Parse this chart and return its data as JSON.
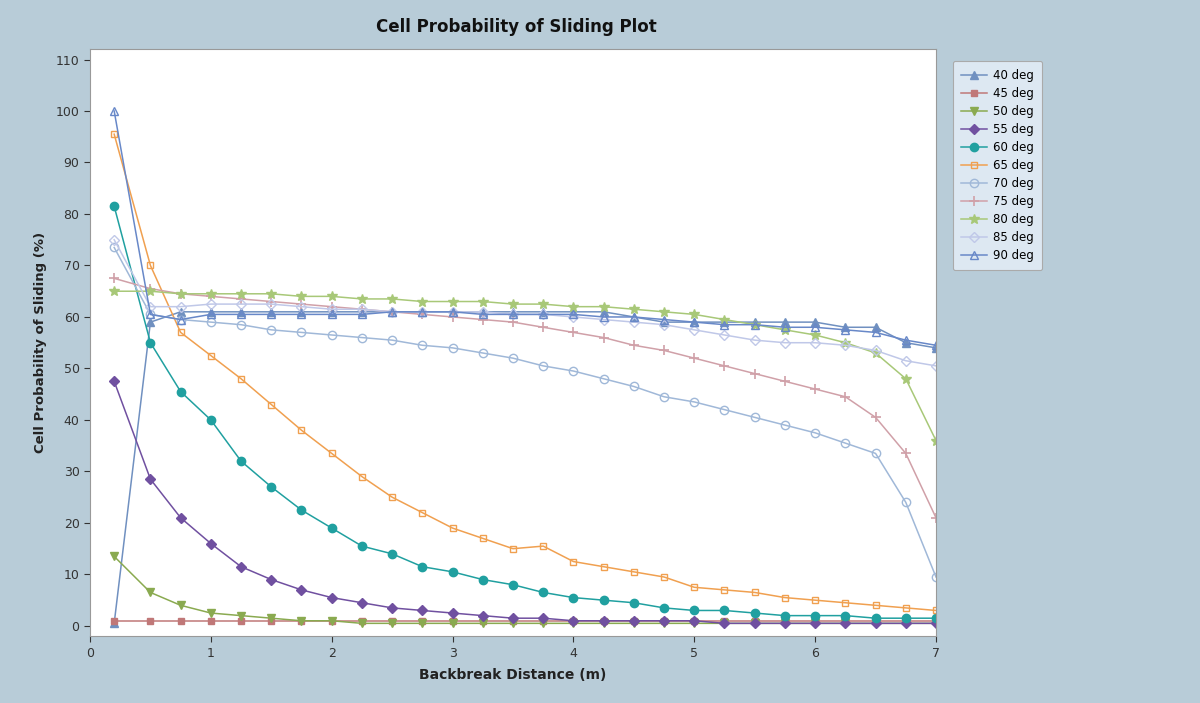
{
  "title": "Cell Probability of Sliding Plot",
  "xlabel": "Backbreak Distance (m)",
  "ylabel": "Cell Probability of Sliding (%)",
  "xlim": [
    0,
    7.0
  ],
  "ylim": [
    -2,
    112
  ],
  "outer_bg_color": "#b8ccd8",
  "plot_bg_color": "#ffffff",
  "yticks": [
    0,
    10,
    20,
    30,
    40,
    50,
    60,
    70,
    80,
    90,
    100,
    110
  ],
  "xticks": [
    0,
    1,
    2,
    3,
    4,
    5,
    6,
    7
  ],
  "series": [
    {
      "label": "40 deg",
      "color": "#7090c0",
      "marker": "^",
      "filled": true,
      "x": [
        0.2,
        0.5,
        0.75,
        1.0,
        1.25,
        1.5,
        1.75,
        2.0,
        2.25,
        2.5,
        2.75,
        3.0,
        3.25,
        3.5,
        3.75,
        4.0,
        4.25,
        4.5,
        4.75,
        5.0,
        5.25,
        5.5,
        5.75,
        6.0,
        6.25,
        6.5,
        6.75,
        7.0
      ],
      "y": [
        0.5,
        59,
        61,
        61,
        61,
        61,
        61,
        61,
        61,
        61,
        61,
        61,
        61,
        61,
        61,
        61,
        61,
        60,
        59,
        59,
        59,
        59,
        59,
        59,
        58,
        58,
        55,
        54
      ]
    },
    {
      "label": "45 deg",
      "color": "#c07878",
      "marker": "s",
      "filled": true,
      "x": [
        0.2,
        0.5,
        0.75,
        1.0,
        1.25,
        1.5,
        1.75,
        2.0,
        2.25,
        2.5,
        2.75,
        3.0,
        3.25,
        3.5,
        3.75,
        4.0,
        4.25,
        4.5,
        4.75,
        5.0,
        5.25,
        5.5,
        5.75,
        6.0,
        6.25,
        6.5,
        6.75,
        7.0
      ],
      "y": [
        1.0,
        1.0,
        1.0,
        1.0,
        1.0,
        1.0,
        1.0,
        1.0,
        1.0,
        1.0,
        1.0,
        1.0,
        1.0,
        1.0,
        1.0,
        1.0,
        1.0,
        1.0,
        1.0,
        1.0,
        1.0,
        1.0,
        1.0,
        1.0,
        1.0,
        1.0,
        1.0,
        1.0
      ]
    },
    {
      "label": "50 deg",
      "color": "#8aaa50",
      "marker": "v",
      "filled": true,
      "x": [
        0.2,
        0.5,
        0.75,
        1.0,
        1.25,
        1.5,
        1.75,
        2.0,
        2.25,
        2.5,
        2.75,
        3.0,
        3.25,
        3.5,
        3.75,
        4.0,
        4.25,
        4.5,
        4.75,
        5.0,
        5.25,
        5.5,
        5.75,
        6.0,
        6.25,
        6.5,
        6.75,
        7.0
      ],
      "y": [
        13.5,
        6.5,
        4.0,
        2.5,
        2.0,
        1.5,
        1.0,
        1.0,
        0.5,
        0.5,
        0.5,
        0.5,
        0.5,
        0.5,
        0.5,
        0.5,
        0.5,
        0.5,
        0.5,
        0.5,
        0.5,
        0.5,
        0.5,
        0.5,
        0.5,
        0.5,
        0.5,
        0.5
      ]
    },
    {
      "label": "55 deg",
      "color": "#7050a0",
      "marker": "D",
      "filled": true,
      "x": [
        0.2,
        0.5,
        0.75,
        1.0,
        1.25,
        1.5,
        1.75,
        2.0,
        2.25,
        2.5,
        2.75,
        3.0,
        3.25,
        3.5,
        3.75,
        4.0,
        4.25,
        4.5,
        4.75,
        5.0,
        5.25,
        5.5,
        5.75,
        6.0,
        6.25,
        6.5,
        6.75,
        7.0
      ],
      "y": [
        47.5,
        28.5,
        21.0,
        16.0,
        11.5,
        9.0,
        7.0,
        5.5,
        4.5,
        3.5,
        3.0,
        2.5,
        2.0,
        1.5,
        1.5,
        1.0,
        1.0,
        1.0,
        1.0,
        1.0,
        0.5,
        0.5,
        0.5,
        0.5,
        0.5,
        0.5,
        0.5,
        0.5
      ]
    },
    {
      "label": "60 deg",
      "color": "#20a0a0",
      "marker": "o",
      "filled": true,
      "x": [
        0.2,
        0.5,
        0.75,
        1.0,
        1.25,
        1.5,
        1.75,
        2.0,
        2.25,
        2.5,
        2.75,
        3.0,
        3.25,
        3.5,
        3.75,
        4.0,
        4.25,
        4.5,
        4.75,
        5.0,
        5.25,
        5.5,
        5.75,
        6.0,
        6.25,
        6.5,
        6.75,
        7.0
      ],
      "y": [
        81.5,
        55.0,
        45.5,
        40.0,
        32.0,
        27.0,
        22.5,
        19.0,
        15.5,
        14.0,
        11.5,
        10.5,
        9.0,
        8.0,
        6.5,
        5.5,
        5.0,
        4.5,
        3.5,
        3.0,
        3.0,
        2.5,
        2.0,
        2.0,
        2.0,
        1.5,
        1.5,
        1.5
      ]
    },
    {
      "label": "65 deg",
      "color": "#f0a050",
      "marker": "s",
      "filled": false,
      "x": [
        0.2,
        0.5,
        0.75,
        1.0,
        1.25,
        1.5,
        1.75,
        2.0,
        2.25,
        2.5,
        2.75,
        3.0,
        3.25,
        3.5,
        3.75,
        4.0,
        4.25,
        4.5,
        4.75,
        5.0,
        5.25,
        5.5,
        5.75,
        6.0,
        6.25,
        6.5,
        6.75,
        7.0
      ],
      "y": [
        95.5,
        70.0,
        57.0,
        52.5,
        48.0,
        43.0,
        38.0,
        33.5,
        29.0,
        25.0,
        22.0,
        19.0,
        17.0,
        15.0,
        15.5,
        12.5,
        11.5,
        10.5,
        9.5,
        7.5,
        7.0,
        6.5,
        5.5,
        5.0,
        4.5,
        4.0,
        3.5,
        3.0
      ]
    },
    {
      "label": "70 deg",
      "color": "#a0b8d8",
      "marker": "o",
      "filled": false,
      "x": [
        0.2,
        0.5,
        0.75,
        1.0,
        1.25,
        1.5,
        1.75,
        2.0,
        2.25,
        2.5,
        2.75,
        3.0,
        3.25,
        3.5,
        3.75,
        4.0,
        4.25,
        4.5,
        4.75,
        5.0,
        5.25,
        5.5,
        5.75,
        6.0,
        6.25,
        6.5,
        6.75,
        7.0
      ],
      "y": [
        73.5,
        60.5,
        59.5,
        59.0,
        58.5,
        57.5,
        57.0,
        56.5,
        56.0,
        55.5,
        54.5,
        54.0,
        53.0,
        52.0,
        50.5,
        49.5,
        48.0,
        46.5,
        44.5,
        43.5,
        42.0,
        40.5,
        39.0,
        37.5,
        35.5,
        33.5,
        24.0,
        9.5
      ]
    },
    {
      "label": "75 deg",
      "color": "#d0a0a8",
      "marker": "+",
      "filled": true,
      "x": [
        0.2,
        0.5,
        0.75,
        1.0,
        1.25,
        1.5,
        1.75,
        2.0,
        2.25,
        2.5,
        2.75,
        3.0,
        3.25,
        3.5,
        3.75,
        4.0,
        4.25,
        4.5,
        4.75,
        5.0,
        5.25,
        5.5,
        5.75,
        6.0,
        6.25,
        6.5,
        6.75,
        7.0
      ],
      "y": [
        67.5,
        65.5,
        64.5,
        64.0,
        63.5,
        63.0,
        62.5,
        62.0,
        61.5,
        61.0,
        60.5,
        60.0,
        59.5,
        59.0,
        58.0,
        57.0,
        56.0,
        54.5,
        53.5,
        52.0,
        50.5,
        49.0,
        47.5,
        46.0,
        44.5,
        40.5,
        33.5,
        21.0
      ]
    },
    {
      "label": "80 deg",
      "color": "#a8c878",
      "marker": "*",
      "filled": true,
      "x": [
        0.2,
        0.5,
        0.75,
        1.0,
        1.25,
        1.5,
        1.75,
        2.0,
        2.25,
        2.5,
        2.75,
        3.0,
        3.25,
        3.5,
        3.75,
        4.0,
        4.25,
        4.5,
        4.75,
        5.0,
        5.25,
        5.5,
        5.75,
        6.0,
        6.25,
        6.5,
        6.75,
        7.0
      ],
      "y": [
        65.0,
        65.0,
        64.5,
        64.5,
        64.5,
        64.5,
        64.0,
        64.0,
        63.5,
        63.5,
        63.0,
        63.0,
        63.0,
        62.5,
        62.5,
        62.0,
        62.0,
        61.5,
        61.0,
        60.5,
        59.5,
        58.5,
        57.5,
        56.5,
        55.0,
        53.0,
        48.0,
        36.0
      ]
    },
    {
      "label": "85 deg",
      "color": "#c0c8e8",
      "marker": "D",
      "filled": false,
      "x": [
        0.2,
        0.5,
        0.75,
        1.0,
        1.25,
        1.5,
        1.75,
        2.0,
        2.25,
        2.5,
        2.75,
        3.0,
        3.25,
        3.5,
        3.75,
        4.0,
        4.25,
        4.5,
        4.75,
        5.0,
        5.25,
        5.5,
        5.75,
        6.0,
        6.25,
        6.5,
        6.75,
        7.0
      ],
      "y": [
        75.0,
        62.0,
        62.0,
        62.5,
        62.5,
        62.5,
        62.0,
        61.5,
        61.5,
        61.0,
        61.0,
        61.0,
        61.0,
        60.5,
        60.5,
        60.0,
        59.5,
        59.0,
        58.5,
        57.5,
        56.5,
        55.5,
        55.0,
        55.0,
        54.5,
        53.5,
        51.5,
        50.5
      ]
    },
    {
      "label": "90 deg",
      "color": "#6888c8",
      "marker": "^",
      "filled": false,
      "x": [
        0.2,
        0.5,
        0.75,
        1.0,
        1.25,
        1.5,
        1.75,
        2.0,
        2.25,
        2.5,
        2.75,
        3.0,
        3.25,
        3.5,
        3.75,
        4.0,
        4.25,
        4.5,
        4.75,
        5.0,
        5.25,
        5.5,
        5.75,
        6.0,
        6.25,
        6.5,
        6.75,
        7.0
      ],
      "y": [
        100.0,
        60.5,
        59.5,
        60.5,
        60.5,
        60.5,
        60.5,
        60.5,
        60.5,
        61.0,
        61.0,
        61.0,
        60.5,
        60.5,
        60.5,
        60.5,
        60.0,
        60.0,
        59.5,
        59.0,
        58.5,
        58.5,
        58.0,
        58.0,
        57.5,
        57.0,
        55.5,
        54.5
      ]
    }
  ]
}
